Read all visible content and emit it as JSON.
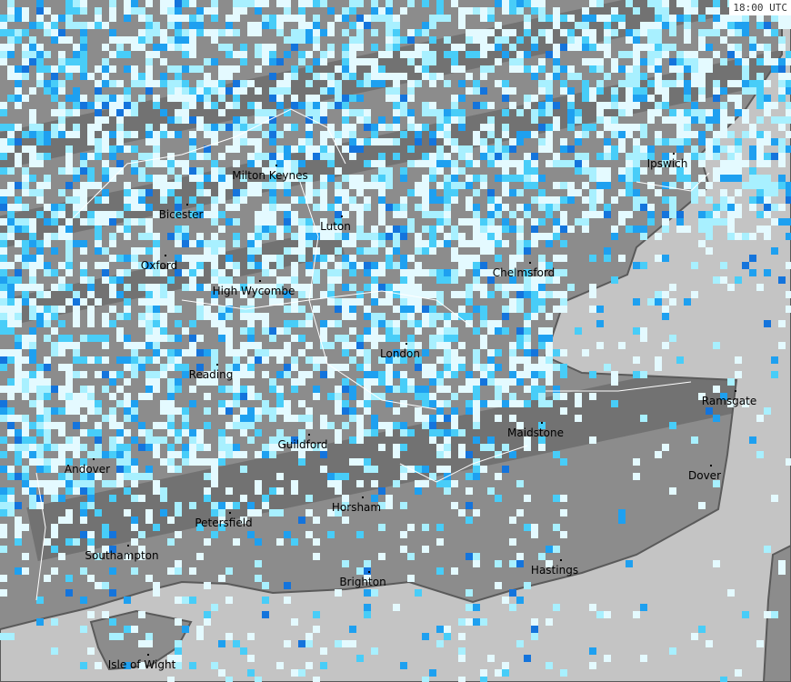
{
  "timestamp": "18:00 UTC",
  "colors": {
    "land": "#8c8c8c",
    "land_dark": "#727272",
    "sea": "#c4c4c4",
    "coast": "#5a5a5a",
    "border": "#ffffff",
    "precip_levels": [
      "#e4faff",
      "#a8f0ff",
      "#48cdf8",
      "#1ea0f0",
      "#1474dc"
    ]
  },
  "cities": [
    {
      "name": "Ipswich"
    },
    {
      "name": "Milton Keynes"
    },
    {
      "name": "Bicester"
    },
    {
      "name": "Luton"
    },
    {
      "name": "Oxford"
    },
    {
      "name": "Chelmsford"
    },
    {
      "name": "High Wycombe"
    },
    {
      "name": "London"
    },
    {
      "name": "Reading"
    },
    {
      "name": "Ramsgate"
    },
    {
      "name": "Maidstone"
    },
    {
      "name": "Guildford"
    },
    {
      "name": "Andover"
    },
    {
      "name": "Dover"
    },
    {
      "name": "Horsham"
    },
    {
      "name": "Petersfield"
    },
    {
      "name": "Southampton"
    },
    {
      "name": "Hastings"
    },
    {
      "name": "Brighton"
    },
    {
      "name": "Isle of Wight"
    }
  ]
}
